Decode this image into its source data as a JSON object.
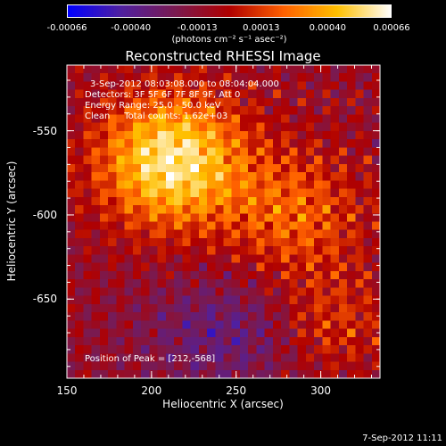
{
  "chart_data": {
    "type": "heatmap",
    "title": "Reconstructed RHESSI Image",
    "xlabel": "Heliocentric X (arcsec)",
    "ylabel": "Heliocentric Y (arcsec)",
    "xlim": [
      150,
      335
    ],
    "ylim": [
      -697,
      -511
    ],
    "x_ticks": [
      "150",
      "200",
      "250",
      "300"
    ],
    "x_tick_values": [
      150,
      200,
      250,
      300
    ],
    "y_ticks": [
      "-550",
      "-600",
      "-650"
    ],
    "y_tick_values": [
      -550,
      -600,
      -650
    ],
    "colorbar": {
      "ticks": [
        "-0.00066",
        "-0.00040",
        "-0.00013",
        "0.00013",
        "0.00040",
        "0.00066"
      ],
      "tick_values": [
        -0.00066,
        -0.0004,
        -0.00013,
        0.00013,
        0.0004,
        0.00066
      ],
      "range": [
        -0.00066,
        0.00066
      ],
      "unit": "(photons cm⁻² s⁻¹ asec⁻²)",
      "colors": [
        "#0000ff",
        "#5020a0",
        "#7a1a50",
        "#b00000",
        "#ff6000",
        "#ffc000",
        "#ffffff"
      ]
    },
    "annotations": {
      "time": "3-Sep-2012 08:03:08.000 to 08:04:04.000",
      "detectors": "Detectors: 3F 5F 6F 7F 8F 9F, Att 0",
      "energy": "Energy Range: 25.0 - 50.0 keV",
      "method": "Clean     Total counts: 1.62e+03",
      "peak": "Position of Peak = [212,-568]"
    },
    "peak_position": [
      212,
      -568
    ],
    "footer_timestamp": "7-Sep-2012 11:11"
  }
}
